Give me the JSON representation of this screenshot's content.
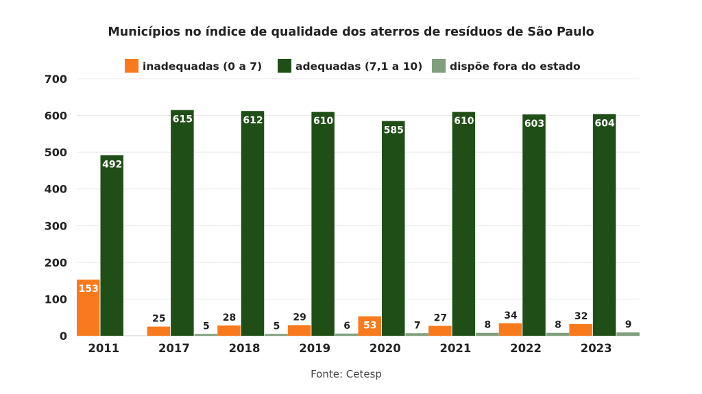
{
  "chart_data": {
    "type": "bar",
    "title": "Municípios no índice de qualidade dos aterros de resíduos de São Paulo",
    "source": "Fonte: Cetesp",
    "categories": [
      "2011",
      "2017",
      "2018",
      "2019",
      "2020",
      "2021",
      "2022",
      "2023"
    ],
    "series": [
      {
        "name": "inadequadas (0 a 7)",
        "color": "#f97a1c",
        "values": [
          153,
          25,
          28,
          29,
          53,
          27,
          34,
          32
        ]
      },
      {
        "name": "adequadas (7,1 a 10)",
        "color": "#1f4f17",
        "values": [
          492,
          615,
          612,
          610,
          585,
          610,
          603,
          604
        ]
      },
      {
        "name": "dispõe fora do estado",
        "color": "#7f9f7d",
        "values": [
          null,
          5,
          5,
          6,
          7,
          8,
          8,
          9
        ]
      }
    ],
    "ylim": [
      0,
      700
    ],
    "yticks": [
      0,
      100,
      200,
      300,
      400,
      500,
      600,
      700
    ],
    "grid": true,
    "legend": "top-center",
    "xlabel": "",
    "ylabel": ""
  }
}
